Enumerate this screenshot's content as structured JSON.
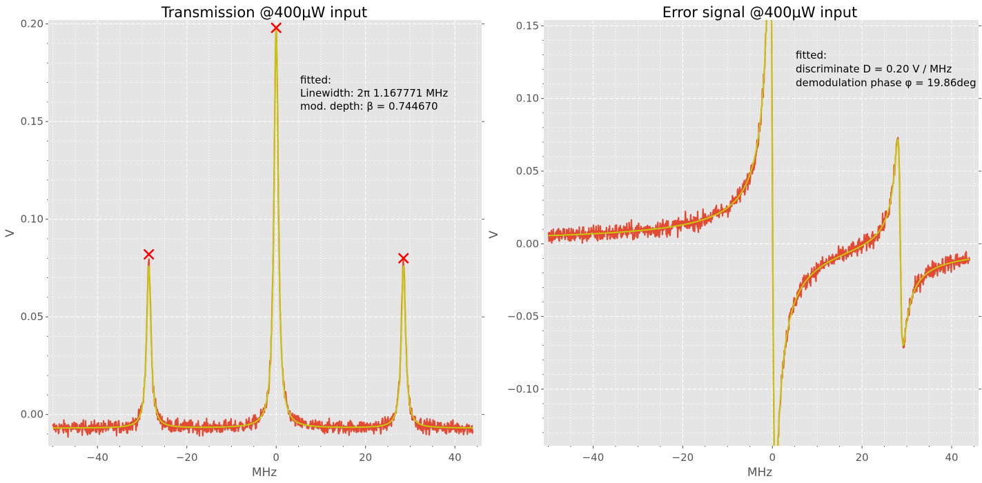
{
  "figure": {
    "background": "#ffffff",
    "axes_face": "#e5e5e5",
    "grid_color": "#ffffff",
    "data_color": "#e24a33",
    "fit_color": "#c8c80a",
    "peak_marker_color": "#ff0000"
  },
  "chart_data": [
    {
      "type": "line",
      "title": "Transmission @$400\\mu W$ input",
      "title_display": "Transmission @400μW input",
      "xlabel": "MHz",
      "ylabel": "V",
      "xlim": [
        -51,
        46
      ],
      "ylim": [
        -0.016,
        0.202
      ],
      "xticks": [
        -40,
        -20,
        0,
        20,
        40
      ],
      "xtick_labels": [
        "−40",
        "−20",
        "0",
        "20",
        "40"
      ],
      "yticks": [
        0.0,
        0.05,
        0.1,
        0.15,
        0.2
      ],
      "ytick_labels": [
        "0.00",
        "0.05",
        "0.10",
        "0.15",
        "0.20"
      ],
      "grid": true,
      "annotation": [
        "fitted:",
        "Linewidth: 2π 1.167771 MHz",
        "mod. depth: β = 0.744670"
      ],
      "peaks": [
        {
          "x": -28.5,
          "y": 0.082
        },
        {
          "x": 0.0,
          "y": 0.198
        },
        {
          "x": 28.5,
          "y": 0.08
        }
      ],
      "series": [
        {
          "name": "data",
          "role": "measured",
          "x_range": [
            -50,
            44
          ],
          "model": "lorentzian_triplet",
          "offset": -0.007,
          "peaks": [
            {
              "center": -28.5,
              "height": 0.085
            },
            {
              "center": 0.0,
              "height": 0.205
            },
            {
              "center": 28.5,
              "height": 0.085
            }
          ],
          "hwhm": 0.58,
          "noise": 0.0035
        },
        {
          "name": "fit",
          "role": "fit",
          "x_range": [
            -50,
            44
          ],
          "model": "lorentzian_triplet",
          "offset": -0.007,
          "peaks": [
            {
              "center": -28.5,
              "height": 0.083
            },
            {
              "center": 0.0,
              "height": 0.204
            },
            {
              "center": 28.5,
              "height": 0.083
            }
          ],
          "hwhm": 0.58
        }
      ]
    },
    {
      "type": "line",
      "title": "Error signal @$400\\mu W$ input",
      "title_display": "Error signal @400μW input",
      "xlabel": "MHz",
      "ylabel": "V",
      "xlim": [
        -51,
        46
      ],
      "ylim": [
        -0.139,
        0.154
      ],
      "xticks": [
        -40,
        -20,
        0,
        20,
        40
      ],
      "xtick_labels": [
        "−40",
        "−20",
        "0",
        "20",
        "40"
      ],
      "yticks": [
        -0.1,
        -0.05,
        0.0,
        0.05,
        0.1,
        0.15
      ],
      "ytick_labels": [
        "−0.10",
        "−0.05",
        "0.00",
        "0.05",
        "0.10",
        "0.15"
      ],
      "grid": true,
      "annotation": [
        "fitted:",
        "discriminate D = 0.20 V / MHz",
        "demodulation phase φ = 19.86deg"
      ],
      "series": [
        {
          "name": "data",
          "role": "measured",
          "x_range": [
            -50,
            44
          ],
          "model": "pdh_error",
          "main_amp": 0.4,
          "side_amp": 0.15,
          "sideband_offset": 28.5,
          "hwhm": 0.6,
          "phase_deg": 19.86,
          "noise": 0.006
        },
        {
          "name": "fit",
          "role": "fit",
          "x_range": [
            -50,
            44
          ],
          "model": "pdh_error",
          "main_amp": 0.4,
          "side_amp": 0.15,
          "sideband_offset": 28.5,
          "hwhm": 0.6,
          "phase_deg": 19.86
        }
      ]
    }
  ]
}
